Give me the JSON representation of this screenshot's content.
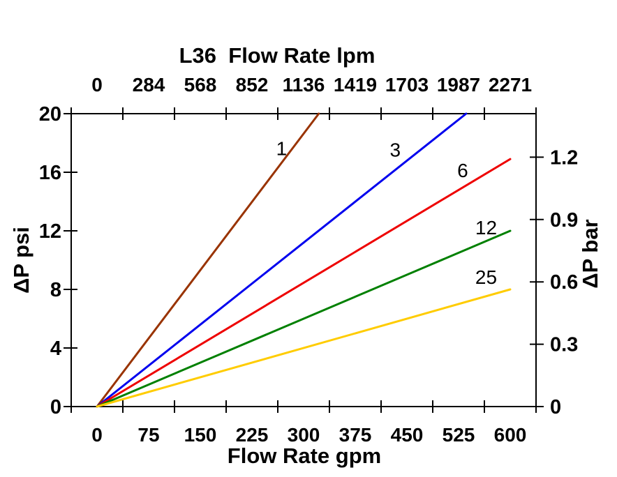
{
  "titles": {
    "top": "L36  Flow Rate lpm",
    "bottom": "Flow Rate gpm",
    "left": "ΔP psi",
    "right": "ΔP bar"
  },
  "colors": {
    "axis": "#000000",
    "series_label_text": "#1a1a1a",
    "background": "#ffffff"
  },
  "chart_data": {
    "type": "line",
    "title": "L36  Flow Rate lpm",
    "xlabel_bottom": "Flow Rate gpm",
    "xlabel_top": "L36  Flow Rate lpm",
    "ylabel_left": "ΔP psi",
    "ylabel_right": "ΔP bar",
    "grid": false,
    "legend": "inline-labels",
    "x_ticks_gpm": [
      0,
      75,
      150,
      225,
      300,
      375,
      450,
      525,
      600
    ],
    "x_ticks_lpm": [
      0,
      284,
      568,
      852,
      1136,
      1419,
      1703,
      1987,
      2271
    ],
    "y_left_ticks_psi": [
      0,
      4,
      8,
      12,
      16,
      20
    ],
    "y_left_range_psi": [
      0,
      20
    ],
    "y_right_ticks_bar": [
      0,
      0.3,
      0.6,
      0.9,
      1.2
    ],
    "series": [
      {
        "label": "1",
        "color": "#993300",
        "points_gpm_psi": [
          [
            0,
            0
          ],
          [
            322,
            20
          ]
        ],
        "label_at_gpm_psi": [
          268,
          17.65
        ]
      },
      {
        "label": "3",
        "color": "#0000ee",
        "points_gpm_psi": [
          [
            0,
            0
          ],
          [
            536,
            20
          ]
        ],
        "label_at_gpm_psi": [
          433,
          17.55
        ]
      },
      {
        "label": "6",
        "color": "#ee0000",
        "points_gpm_psi": [
          [
            0,
            0
          ],
          [
            600,
            16.9
          ]
        ],
        "label_at_gpm_psi": [
          531,
          16.15
        ]
      },
      {
        "label": "12",
        "color": "#008000",
        "points_gpm_psi": [
          [
            0,
            0
          ],
          [
            600,
            12.0
          ]
        ],
        "label_at_gpm_psi": [
          565,
          12.25
        ]
      },
      {
        "label": "25",
        "color": "#ffcc00",
        "points_gpm_psi": [
          [
            0,
            0
          ],
          [
            600,
            8.0
          ]
        ],
        "label_at_gpm_psi": [
          565,
          8.85
        ]
      }
    ]
  }
}
